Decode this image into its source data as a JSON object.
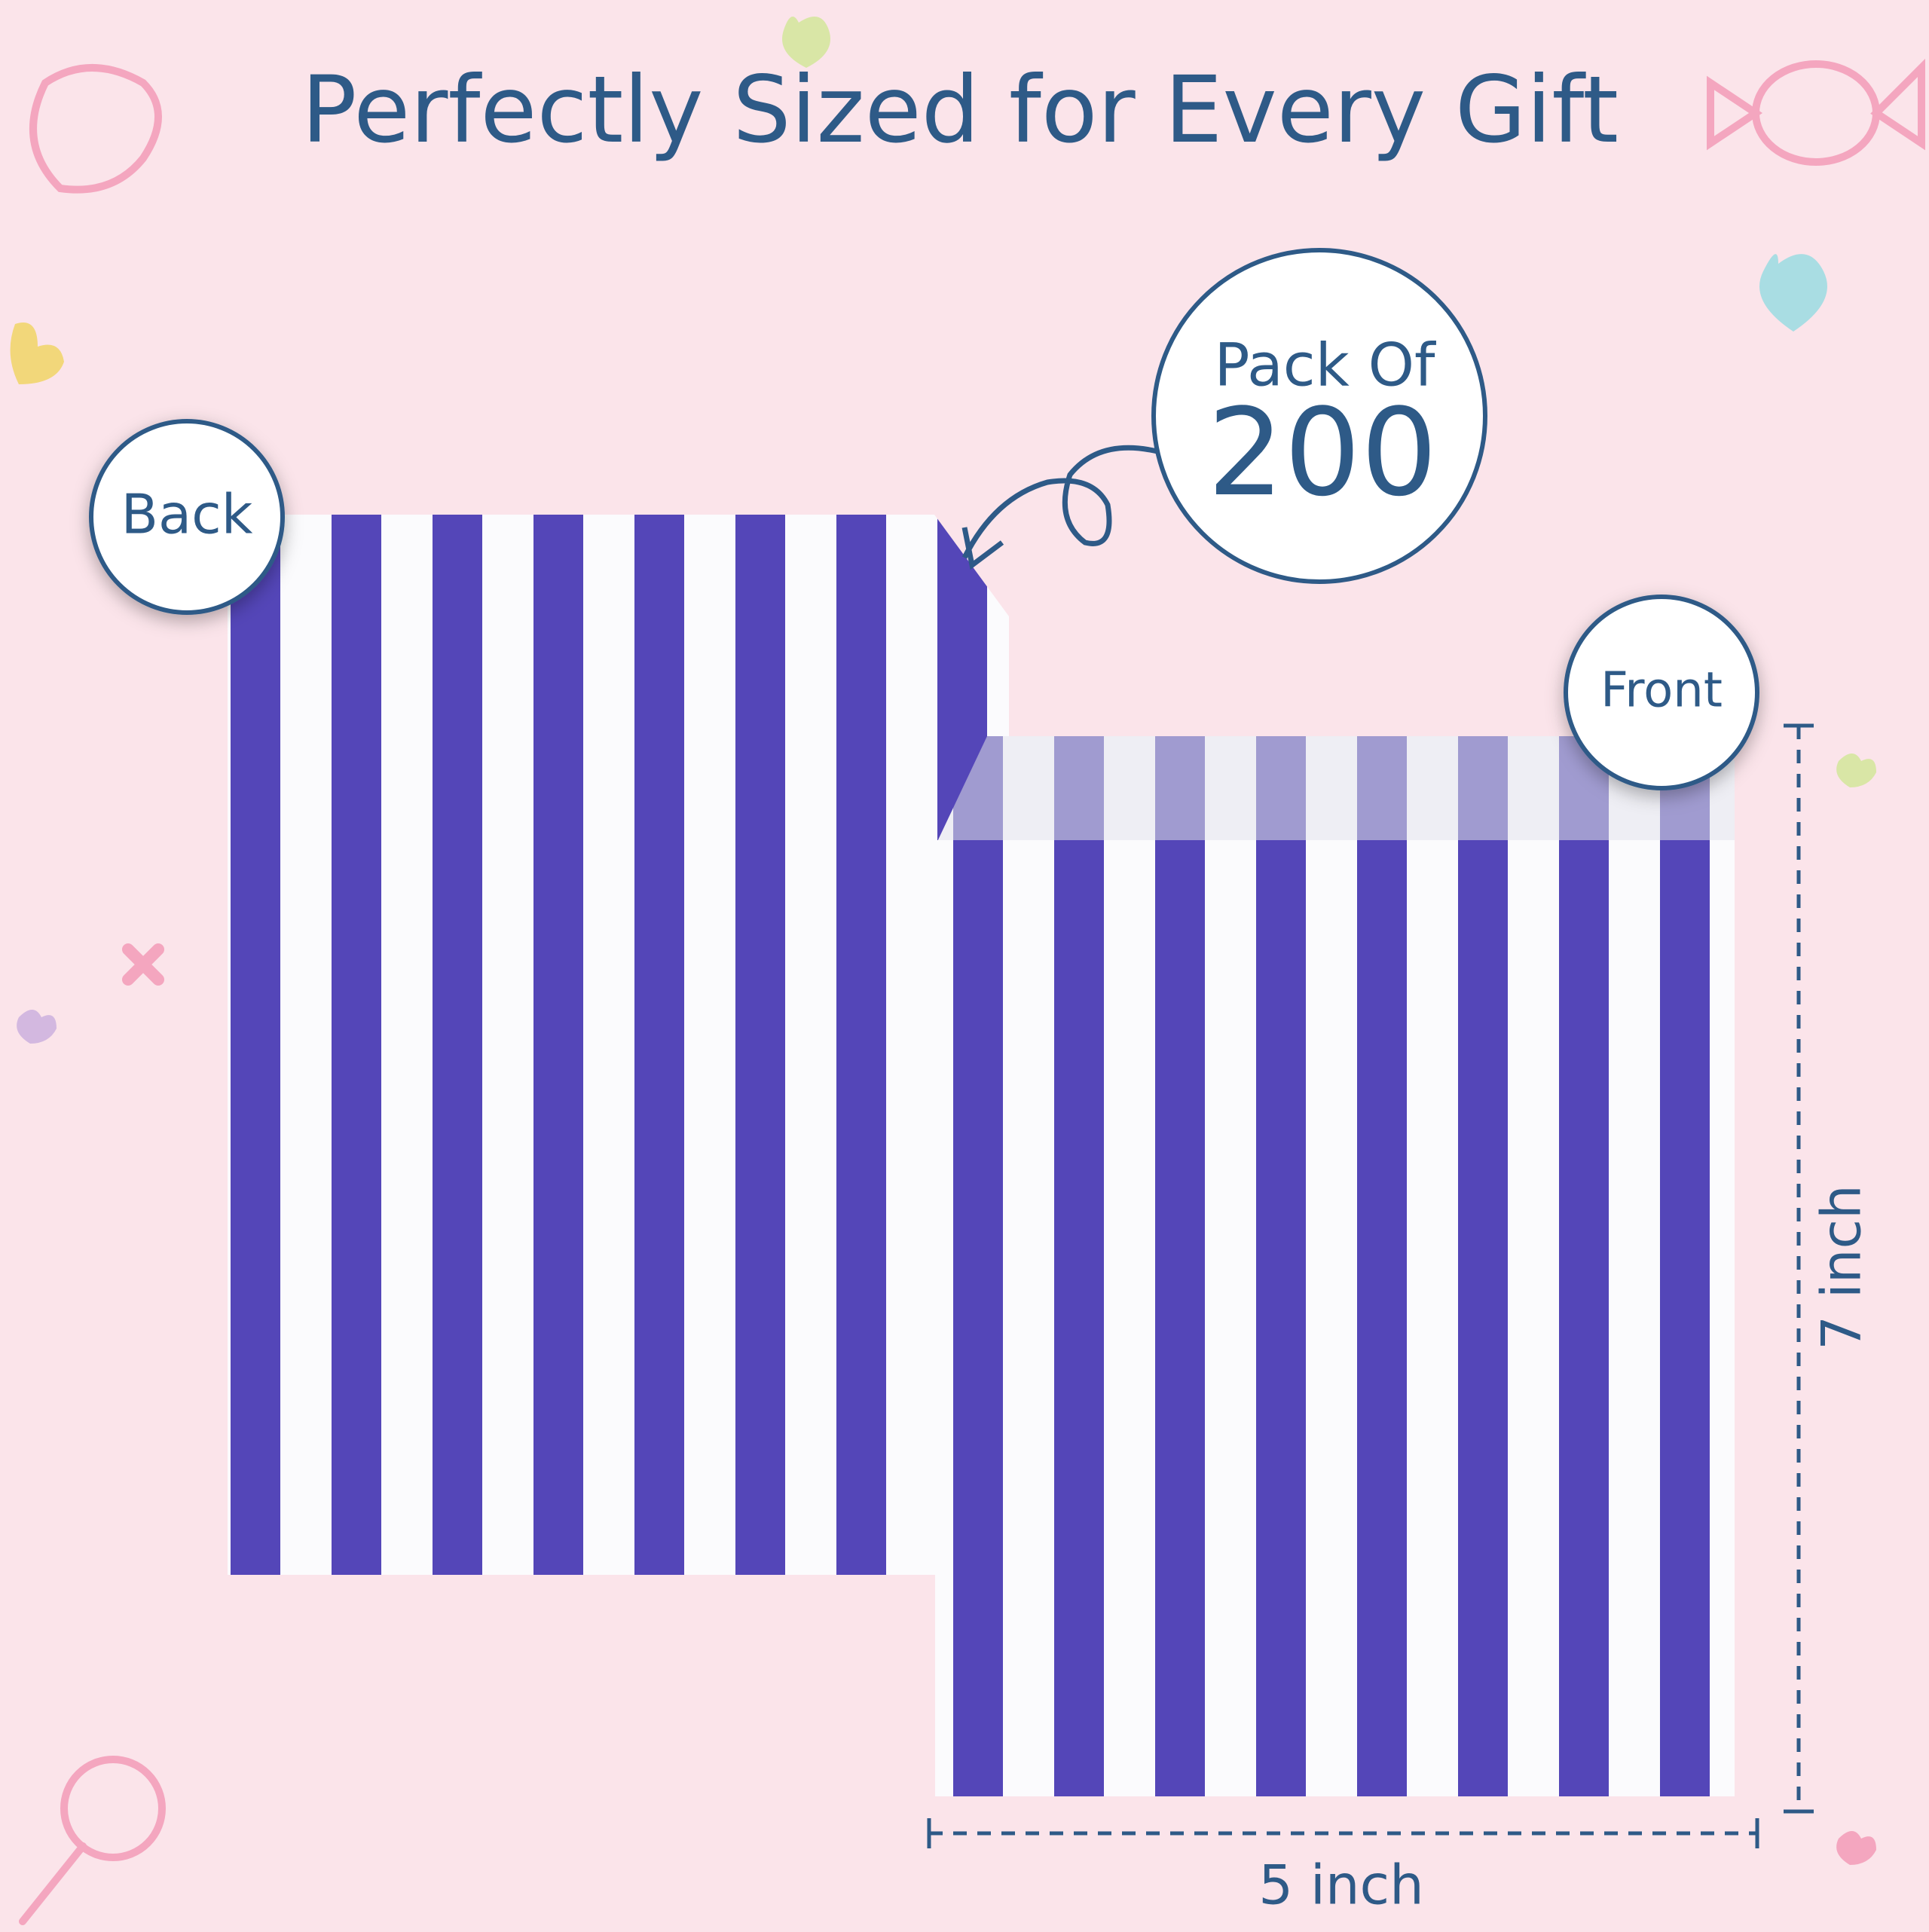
{
  "header": {
    "title": "Perfectly Sized for Every Gift"
  },
  "badges": {
    "back": "Back",
    "front": "Front",
    "pack_label": "Pack Of",
    "pack_count": "200"
  },
  "dimensions": {
    "height": "7 inch",
    "width": "5 inch"
  }
}
